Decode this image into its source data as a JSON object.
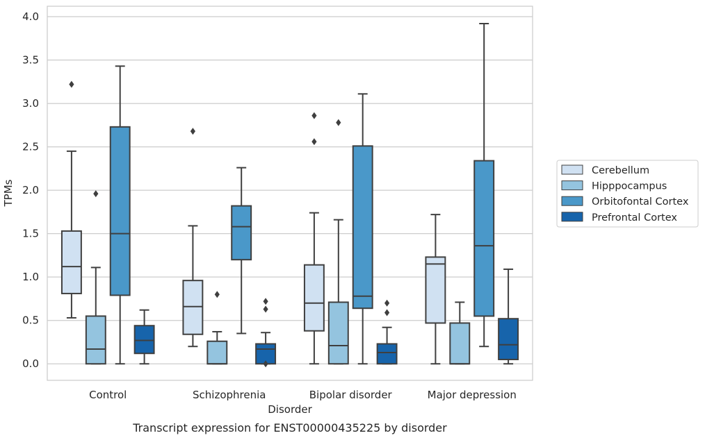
{
  "chart_data": {
    "type": "boxplot",
    "title": "Transcript expression for ENST00000435225 by disorder",
    "xlabel": "Disorder",
    "ylabel": "TPMs",
    "ylim": [
      -0.19,
      4.12
    ],
    "yticks": [
      "0.0",
      "0.5",
      "1.0",
      "1.5",
      "2.0",
      "2.5",
      "3.0",
      "3.5",
      "4.0"
    ],
    "grid": true,
    "legend_position": "right",
    "categories": [
      "Control",
      "Schizophrenia",
      "Bipolar disorder",
      "Major depression"
    ],
    "series": [
      {
        "name": "Cerebellum",
        "color": "#d0e1f2",
        "boxes": [
          {
            "whislo": 0.53,
            "q1": 0.81,
            "med": 1.12,
            "q3": 1.53,
            "whishi": 2.45,
            "fliers": [
              3.22
            ]
          },
          {
            "whislo": 0.2,
            "q1": 0.34,
            "med": 0.66,
            "q3": 0.96,
            "whishi": 1.59,
            "fliers": [
              2.68
            ]
          },
          {
            "whislo": 0.0,
            "q1": 0.38,
            "med": 0.7,
            "q3": 1.14,
            "whishi": 1.74,
            "fliers": [
              2.56,
              2.86
            ]
          },
          {
            "whislo": 0.0,
            "q1": 0.47,
            "med": 1.15,
            "q3": 1.23,
            "whishi": 1.72,
            "fliers": []
          }
        ]
      },
      {
        "name": "Hipppocampus",
        "color": "#94c4df",
        "boxes": [
          {
            "whislo": 0.0,
            "q1": 0.0,
            "med": 0.17,
            "q3": 0.55,
            "whishi": 1.11,
            "fliers": [
              1.96
            ]
          },
          {
            "whislo": 0.0,
            "q1": 0.0,
            "med": 0.0,
            "q3": 0.26,
            "whishi": 0.37,
            "fliers": [
              0.8
            ]
          },
          {
            "whislo": 0.0,
            "q1": 0.0,
            "med": 0.21,
            "q3": 0.71,
            "whishi": 1.66,
            "fliers": [
              2.78
            ]
          },
          {
            "whislo": 0.0,
            "q1": 0.0,
            "med": 0.0,
            "q3": 0.47,
            "whishi": 0.71,
            "fliers": []
          }
        ]
      },
      {
        "name": "Orbitofontal Cortex",
        "color": "#4a98c9",
        "boxes": [
          {
            "whislo": 0.0,
            "q1": 0.79,
            "med": 1.5,
            "q3": 2.73,
            "whishi": 3.43,
            "fliers": []
          },
          {
            "whislo": 0.35,
            "q1": 1.2,
            "med": 1.58,
            "q3": 1.82,
            "whishi": 2.26,
            "fliers": []
          },
          {
            "whislo": 0.0,
            "q1": 0.64,
            "med": 0.78,
            "q3": 2.51,
            "whishi": 3.11,
            "fliers": []
          },
          {
            "whislo": 0.2,
            "q1": 0.55,
            "med": 1.36,
            "q3": 2.34,
            "whishi": 3.92,
            "fliers": []
          }
        ]
      },
      {
        "name": "Prefrontal Cortex",
        "color": "#1764ab",
        "boxes": [
          {
            "whislo": 0.0,
            "q1": 0.12,
            "med": 0.27,
            "q3": 0.44,
            "whishi": 0.62,
            "fliers": []
          },
          {
            "whislo": 0.0,
            "q1": 0.0,
            "med": 0.17,
            "q3": 0.23,
            "whishi": 0.36,
            "fliers": [
              0.0,
              0.63,
              0.72
            ]
          },
          {
            "whislo": 0.0,
            "q1": 0.0,
            "med": 0.13,
            "q3": 0.23,
            "whishi": 0.42,
            "fliers": [
              0.59,
              0.7
            ]
          },
          {
            "whislo": 0.0,
            "q1": 0.05,
            "med": 0.22,
            "q3": 0.52,
            "whishi": 1.09,
            "fliers": []
          }
        ]
      }
    ]
  }
}
